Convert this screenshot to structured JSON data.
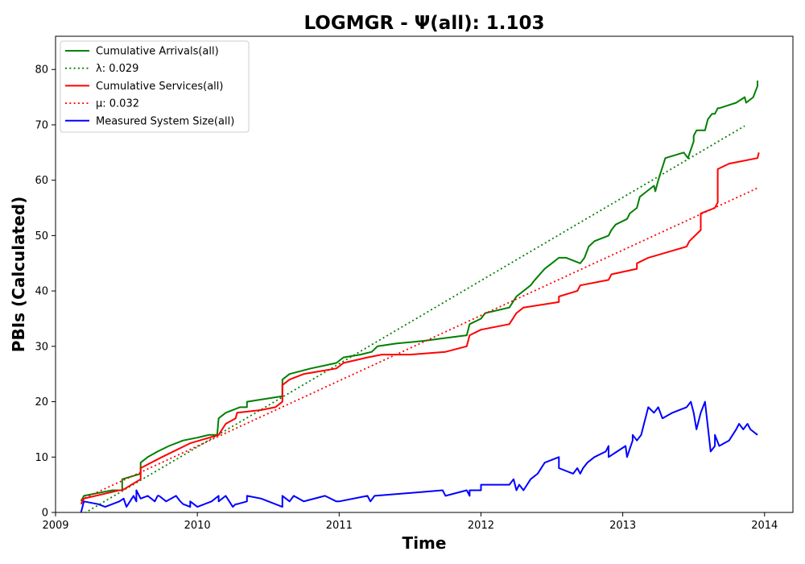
{
  "chart_data": {
    "type": "line",
    "title": "LOGMGR -  Ψ(all): 1.103",
    "xlabel": "Time",
    "ylabel": "PBIs (Calculated)",
    "xlim": [
      2009.0,
      2014.2
    ],
    "ylim": [
      0,
      86
    ],
    "x_ticks": [
      2009,
      2010,
      2011,
      2012,
      2013,
      2014
    ],
    "x_tick_labels": [
      "2009",
      "2010",
      "2011",
      "2012",
      "2013",
      "2014"
    ],
    "y_ticks": [
      0,
      10,
      20,
      30,
      40,
      50,
      60,
      70,
      80
    ],
    "y_tick_labels": [
      "0",
      "10",
      "20",
      "30",
      "40",
      "50",
      "60",
      "70",
      "80"
    ],
    "grid": false,
    "legend_position": "top-left",
    "series": [
      {
        "name": "Cumulative Arrivals(all)",
        "color": "#008000",
        "style": "solid",
        "x": [
          2009.18,
          2009.2,
          2009.3,
          2009.4,
          2009.47,
          2009.47,
          2009.6,
          2009.6,
          2009.65,
          2009.72,
          2009.8,
          2009.9,
          2010.0,
          2010.08,
          2010.14,
          2010.15,
          2010.2,
          2010.3,
          2010.35,
          2010.35,
          2010.6,
          2010.6,
          2010.65,
          2010.8,
          2010.98,
          2011.03,
          2011.15,
          2011.23,
          2011.27,
          2011.4,
          2011.6,
          2011.75,
          2011.9,
          2011.92,
          2012.0,
          2012.03,
          2012.2,
          2012.25,
          2012.35,
          2012.38,
          2012.45,
          2012.5,
          2012.55,
          2012.6,
          2012.7,
          2012.73,
          2012.76,
          2012.8,
          2012.9,
          2012.92,
          2012.95,
          2013.03,
          2013.05,
          2013.1,
          2013.12,
          2013.17,
          2013.22,
          2013.23,
          2013.25,
          2013.3,
          2013.43,
          2013.46,
          2013.5,
          2013.5,
          2013.52,
          2013.58,
          2013.6,
          2013.63,
          2013.65,
          2013.67,
          2013.68,
          2013.8,
          2013.86,
          2013.87,
          2013.92,
          2013.95,
          2013.95
        ],
        "y": [
          2,
          3,
          3.5,
          4,
          4,
          6,
          7,
          9,
          10,
          11,
          12,
          13,
          13.5,
          14,
          14,
          17,
          18,
          19,
          19,
          20,
          21,
          24,
          25,
          26,
          27,
          28,
          28.5,
          29,
          30,
          30.5,
          31,
          31.5,
          32,
          34,
          35,
          36,
          37,
          39,
          41,
          42,
          44,
          45,
          46,
          46,
          45,
          46,
          48,
          49,
          50,
          51,
          52,
          53,
          54,
          55,
          57,
          58,
          59,
          58,
          60,
          64,
          65,
          64,
          67,
          68,
          69,
          69,
          71,
          72,
          72,
          73,
          73,
          74,
          75,
          74,
          75,
          77,
          78
        ]
      },
      {
        "name": "λ: 0.029",
        "color": "#008000",
        "style": "dotted",
        "x": [
          2009.18,
          2013.86
        ],
        "y": [
          -0.5,
          69.8
        ]
      },
      {
        "name": "Cumulative Services(all)",
        "color": "#ff0000",
        "style": "solid",
        "x": [
          2009.18,
          2009.2,
          2009.45,
          2009.47,
          2009.6,
          2009.6,
          2009.75,
          2009.95,
          2010.15,
          2010.2,
          2010.27,
          2010.28,
          2010.45,
          2010.55,
          2010.6,
          2010.6,
          2010.65,
          2010.75,
          2010.98,
          2011.03,
          2011.2,
          2011.3,
          2011.5,
          2011.75,
          2011.9,
          2011.92,
          2012.0,
          2012.2,
          2012.25,
          2012.3,
          2012.55,
          2012.55,
          2012.68,
          2012.7,
          2012.9,
          2012.92,
          2013.1,
          2013.1,
          2013.18,
          2013.45,
          2013.47,
          2013.55,
          2013.55,
          2013.65,
          2013.67,
          2013.67,
          2013.75,
          2013.95,
          2013.96
        ],
        "y": [
          1.5,
          2.5,
          4,
          4,
          6,
          8,
          10,
          12.5,
          14,
          16,
          17,
          18,
          18.5,
          19,
          20,
          23,
          24,
          25,
          26,
          27,
          28,
          28.5,
          28.5,
          29,
          30,
          32,
          33,
          34,
          36,
          37,
          38,
          39,
          40,
          41,
          42,
          43,
          44,
          45,
          46,
          48,
          49,
          51,
          54,
          55,
          56,
          62,
          63,
          64,
          65
        ]
      },
      {
        "name": "μ: 0.032",
        "color": "#ff0000",
        "style": "dotted",
        "x": [
          2009.18,
          2013.96
        ],
        "y": [
          2.3,
          58.7
        ]
      },
      {
        "name": "Measured System Size(all)",
        "color": "#0000ff",
        "style": "solid",
        "x": [
          2009.18,
          2009.2,
          2009.3,
          2009.35,
          2009.45,
          2009.48,
          2009.5,
          2009.55,
          2009.57,
          2009.57,
          2009.6,
          2009.65,
          2009.7,
          2009.72,
          2009.73,
          2009.78,
          2009.85,
          2009.88,
          2009.9,
          2009.95,
          2009.95,
          2010.0,
          2010.1,
          2010.15,
          2010.15,
          2010.2,
          2010.25,
          2010.27,
          2010.28,
          2010.35,
          2010.35,
          2010.45,
          2010.6,
          2010.6,
          2010.65,
          2010.68,
          2010.75,
          2010.9,
          2010.98,
          2011.0,
          2011.2,
          2011.22,
          2011.25,
          2011.5,
          2011.73,
          2011.75,
          2011.9,
          2011.92,
          2011.92,
          2012.0,
          2012.0,
          2012.2,
          2012.23,
          2012.25,
          2012.27,
          2012.3,
          2012.35,
          2012.4,
          2012.45,
          2012.55,
          2012.55,
          2012.65,
          2012.68,
          2012.7,
          2012.72,
          2012.75,
          2012.8,
          2012.88,
          2012.9,
          2012.9,
          2013.02,
          2013.03,
          2013.07,
          2013.07,
          2013.1,
          2013.13,
          2013.15,
          2013.18,
          2013.22,
          2013.25,
          2013.28,
          2013.35,
          2013.45,
          2013.48,
          2013.5,
          2013.52,
          2013.55,
          2013.58,
          2013.62,
          2013.65,
          2013.65,
          2013.68,
          2013.75,
          2013.8,
          2013.82,
          2013.85,
          2013.88,
          2013.9,
          2013.95
        ],
        "y": [
          0,
          2,
          1.5,
          1,
          2,
          2.5,
          1,
          3,
          2,
          4,
          2.5,
          3,
          2,
          3,
          3,
          2,
          3,
          2,
          1.5,
          1,
          2,
          1,
          2,
          3,
          2,
          3,
          1,
          1.5,
          1.5,
          2,
          3,
          2.5,
          1,
          3,
          2,
          3,
          2,
          3,
          2,
          2,
          3,
          2,
          3,
          3.5,
          4,
          3,
          4,
          3,
          4,
          4,
          5,
          5,
          6,
          4,
          5,
          4,
          6,
          7,
          9,
          10,
          8,
          7,
          8,
          7,
          8,
          9,
          10,
          11,
          12,
          10,
          12,
          10,
          13,
          14,
          13,
          14,
          16,
          19,
          18,
          19,
          17,
          18,
          19,
          20,
          18,
          15,
          18,
          20,
          11,
          12,
          14,
          12,
          13,
          15,
          16,
          15,
          16,
          15,
          14
        ]
      }
    ]
  }
}
